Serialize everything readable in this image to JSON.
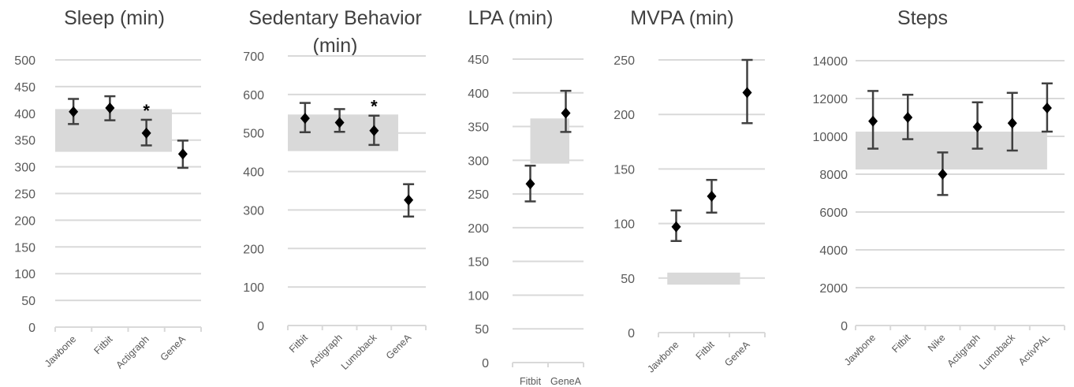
{
  "chart_data": [
    {
      "type": "scatter",
      "title": "Sleep (min)",
      "categories": [
        "Jawbone",
        "Fitbit",
        "Actigraph",
        "GeneA"
      ],
      "ylim": [
        0,
        500
      ],
      "yticks": [
        0,
        50,
        100,
        150,
        200,
        250,
        300,
        350,
        400,
        450,
        500
      ],
      "values": [
        403,
        410,
        363,
        324
      ],
      "err_low": [
        380,
        387,
        340,
        298
      ],
      "err_high": [
        427,
        432,
        388,
        349
      ],
      "band": {
        "low": 328,
        "high": 408,
        "x_from": 0,
        "x_to": 2.7
      },
      "significant": [
        false,
        false,
        true,
        false
      ],
      "significance_marker": "*",
      "grid": true,
      "xlabel_rotate": true
    },
    {
      "type": "scatter",
      "title": "Sedentary Behavior (min)",
      "categories": [
        "Fitbit",
        "Actigraph",
        "Lumoback",
        "GeneA"
      ],
      "ylim": [
        0,
        700
      ],
      "yticks": [
        0,
        100,
        200,
        300,
        400,
        500,
        600,
        700
      ],
      "values": [
        538,
        527,
        506,
        326
      ],
      "err_low": [
        502,
        503,
        469,
        283
      ],
      "err_high": [
        578,
        562,
        545,
        367
      ],
      "band": {
        "low": 453,
        "high": 548,
        "x_from": 0,
        "x_to": 2.7
      },
      "significant": [
        false,
        false,
        true,
        false
      ],
      "significance_marker": "*",
      "grid": true,
      "xlabel_rotate": true
    },
    {
      "type": "scatter",
      "title": "LPA (min)",
      "categories": [
        "Fitbit",
        "GeneA"
      ],
      "ylim": [
        0,
        450
      ],
      "yticks": [
        0,
        50,
        100,
        150,
        200,
        250,
        300,
        350,
        400,
        450
      ],
      "values": [
        265,
        370
      ],
      "err_low": [
        239,
        342
      ],
      "err_high": [
        292,
        403
      ],
      "band": {
        "low": 295,
        "high": 362,
        "x_from": 0.5,
        "x_to": 1.1
      },
      "significant": [
        false,
        false
      ],
      "significance_marker": "*",
      "grid": true,
      "xlabel_rotate": false
    },
    {
      "type": "scatter",
      "title": "MVPA (min)",
      "categories": [
        "Jawbone",
        "Fitbit",
        "GeneA"
      ],
      "ylim": [
        0,
        250
      ],
      "yticks": [
        0,
        50,
        100,
        150,
        200,
        250
      ],
      "values": [
        97,
        125,
        220
      ],
      "err_low": [
        84,
        110,
        192
      ],
      "err_high": [
        112,
        140,
        250
      ],
      "band": {
        "low": 44,
        "high": 55,
        "x_from": 0.25,
        "x_to": 1.8
      },
      "significant": [
        false,
        false,
        false
      ],
      "significance_marker": "*",
      "grid": true,
      "xlabel_rotate": true
    },
    {
      "type": "scatter",
      "title": "Steps",
      "categories": [
        "Jawbone",
        "Fitbit",
        "Nike",
        "Actigraph",
        "Lumoback",
        "ActivPAL"
      ],
      "ylim": [
        0,
        14000
      ],
      "yticks": [
        0,
        2000,
        4000,
        6000,
        8000,
        10000,
        12000,
        14000
      ],
      "values": [
        10800,
        11000,
        8000,
        10500,
        10700,
        11500
      ],
      "err_low": [
        9350,
        9850,
        6900,
        9350,
        9250,
        10250
      ],
      "err_high": [
        12400,
        12200,
        9150,
        11800,
        12300,
        12800
      ],
      "band": {
        "low": 8250,
        "high": 10250,
        "x_from": 0,
        "x_to": 5
      },
      "significant": [
        false,
        false,
        false,
        false,
        false,
        false
      ],
      "significance_marker": "*",
      "grid": true,
      "xlabel_rotate": true
    }
  ],
  "colors": {
    "point": "#000000",
    "errorbar": "#404040",
    "band": "#d9d9d9",
    "grid": "#d9d9d9",
    "text": "#595959"
  }
}
